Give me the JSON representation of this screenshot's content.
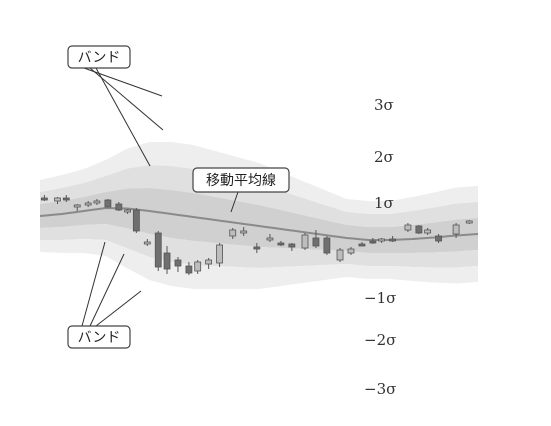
{
  "chart_data": {
    "type": "candlestick-bollinger",
    "band_labels": [
      "3σ",
      "2σ",
      "1σ",
      "−1σ",
      "−2σ",
      "−3σ"
    ],
    "annotations": {
      "band_upper": "バンド",
      "band_lower": "バンド",
      "moving_average": "移動平均線"
    },
    "band_levels": [
      -3,
      -2,
      -1,
      0,
      1,
      2,
      3
    ],
    "moving_average": [
      [
        0,
        108
      ],
      [
        10,
        106
      ],
      [
        20,
        103
      ],
      [
        30,
        100
      ],
      [
        40,
        100.5
      ],
      [
        50,
        103
      ],
      [
        60,
        106
      ],
      [
        70,
        109
      ],
      [
        80,
        112
      ],
      [
        90,
        115
      ],
      [
        100,
        118
      ],
      [
        110,
        121
      ],
      [
        120,
        124
      ],
      [
        130,
        127
      ],
      [
        140,
        130
      ],
      [
        150,
        132
      ],
      [
        160,
        132
      ],
      [
        170,
        131
      ],
      [
        180,
        129.5
      ],
      [
        190,
        127.5
      ],
      [
        200,
        126
      ]
    ],
    "sigma": [
      [
        0,
        12
      ],
      [
        10,
        13
      ],
      [
        20,
        14
      ],
      [
        30,
        16
      ],
      [
        40,
        20
      ],
      [
        50,
        23
      ],
      [
        60,
        24
      ],
      [
        70,
        24
      ],
      [
        80,
        23
      ],
      [
        90,
        22
      ],
      [
        100,
        21
      ],
      [
        110,
        19
      ],
      [
        120,
        17
      ],
      [
        130,
        15
      ],
      [
        140,
        13
      ],
      [
        150,
        13
      ],
      [
        160,
        13
      ],
      [
        170,
        14
      ],
      [
        180,
        15
      ],
      [
        190,
        16
      ],
      [
        200,
        16
      ]
    ],
    "candles": [
      {
        "x": 2,
        "o": 90,
        "h": 93,
        "l": 87,
        "c": 91
      },
      {
        "x": 8,
        "o": 93,
        "h": 96,
        "l": 89,
        "c": 90
      },
      {
        "x": 12,
        "o": 90,
        "h": 94,
        "l": 87,
        "c": 92
      },
      {
        "x": 17,
        "o": 98,
        "h": 103,
        "l": 96,
        "c": 97
      },
      {
        "x": 22,
        "o": 96,
        "h": 99,
        "l": 93,
        "c": 95
      },
      {
        "x": 26,
        "o": 94,
        "h": 97,
        "l": 91,
        "c": 93
      },
      {
        "x": 31,
        "o": 92,
        "h": 99,
        "l": 91,
        "c": 99
      },
      {
        "x": 36,
        "o": 96,
        "h": 103,
        "l": 94,
        "c": 102
      },
      {
        "x": 40,
        "o": 103,
        "h": 106,
        "l": 101,
        "c": 102
      },
      {
        "x": 44,
        "o": 102,
        "h": 125,
        "l": 100,
        "c": 123
      },
      {
        "x": 49,
        "o": 135,
        "h": 138,
        "l": 131,
        "c": 134
      },
      {
        "x": 54,
        "o": 125,
        "h": 163,
        "l": 123,
        "c": 159
      },
      {
        "x": 58,
        "o": 145,
        "h": 166,
        "l": 138,
        "c": 161
      },
      {
        "x": 63,
        "o": 152,
        "h": 164,
        "l": 149,
        "c": 158
      },
      {
        "x": 68,
        "o": 158,
        "h": 167,
        "l": 154,
        "c": 165
      },
      {
        "x": 72,
        "o": 163,
        "h": 166,
        "l": 152,
        "c": 154
      },
      {
        "x": 77,
        "o": 156,
        "h": 161,
        "l": 150,
        "c": 152
      },
      {
        "x": 82,
        "o": 155,
        "h": 159,
        "l": 135,
        "c": 137
      },
      {
        "x": 88,
        "o": 128,
        "h": 131,
        "l": 120,
        "c": 122
      },
      {
        "x": 93,
        "o": 125,
        "h": 128,
        "l": 119,
        "c": 123
      },
      {
        "x": 99,
        "o": 139,
        "h": 145,
        "l": 135,
        "c": 141
      },
      {
        "x": 105,
        "o": 131,
        "h": 134,
        "l": 126,
        "c": 130
      },
      {
        "x": 110,
        "o": 135,
        "h": 138,
        "l": 133,
        "c": 136
      },
      {
        "x": 115,
        "o": 136,
        "h": 143,
        "l": 135,
        "c": 139
      },
      {
        "x": 121,
        "o": 140,
        "h": 142,
        "l": 125,
        "c": 127
      },
      {
        "x": 126,
        "o": 130,
        "h": 140,
        "l": 122,
        "c": 138
      },
      {
        "x": 131,
        "o": 130,
        "h": 147,
        "l": 128,
        "c": 145
      },
      {
        "x": 137,
        "o": 152,
        "h": 154,
        "l": 140,
        "c": 142
      },
      {
        "x": 142,
        "o": 145,
        "h": 147,
        "l": 139,
        "c": 141
      },
      {
        "x": 147,
        "o": 136,
        "h": 138,
        "l": 134,
        "c": 137
      },
      {
        "x": 152,
        "o": 133,
        "h": 136,
        "l": 130,
        "c": 134
      },
      {
        "x": 156,
        "o": 132,
        "h": 135,
        "l": 130,
        "c": 131
      },
      {
        "x": 161,
        "o": 131,
        "h": 134,
        "l": 128,
        "c": 133
      },
      {
        "x": 168,
        "o": 122,
        "h": 124,
        "l": 115,
        "c": 117
      },
      {
        "x": 173,
        "o": 118,
        "h": 126,
        "l": 117,
        "c": 125
      },
      {
        "x": 177,
        "o": 125,
        "h": 127,
        "l": 120,
        "c": 122
      },
      {
        "x": 182,
        "o": 128,
        "h": 135,
        "l": 126,
        "c": 133
      },
      {
        "x": 190,
        "o": 126,
        "h": 130,
        "l": 115,
        "c": 117
      },
      {
        "x": 196,
        "o": 114,
        "h": 116,
        "l": 112,
        "c": 113
      }
    ]
  }
}
